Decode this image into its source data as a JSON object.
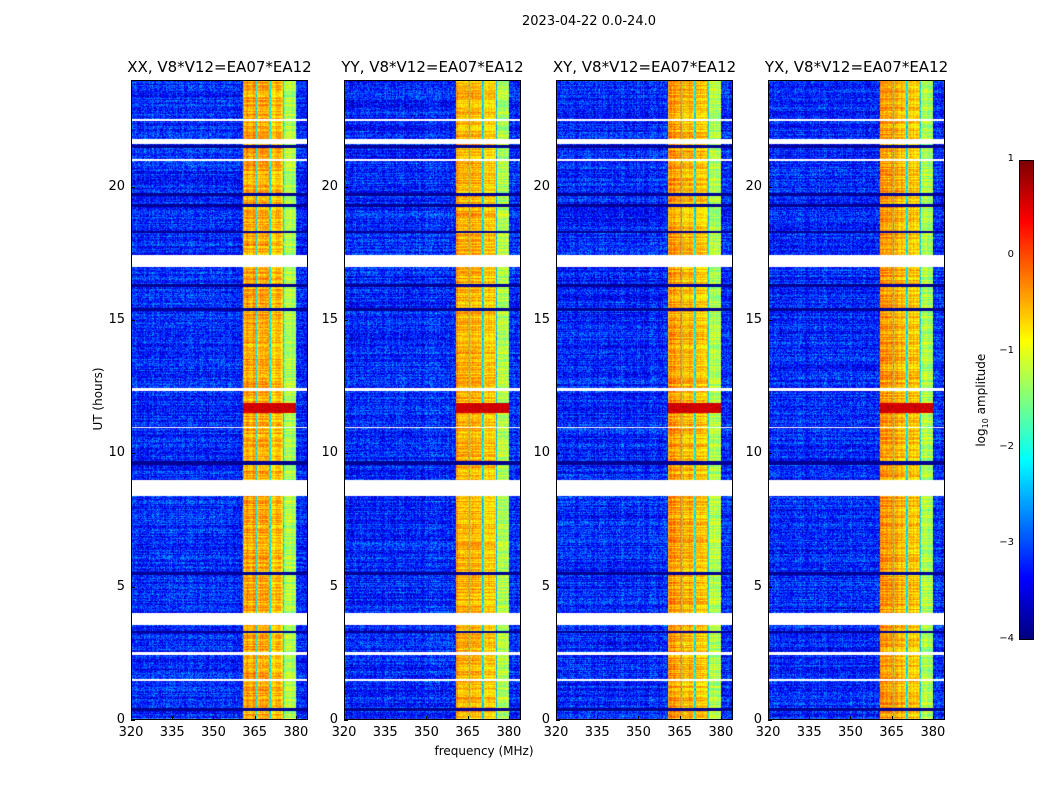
{
  "chart_data": {
    "type": "heatmap",
    "title": "2023-04-22 0.0-24.0",
    "xlabel": "frequency (MHz)",
    "ylabel": "UT (hours)",
    "xlim": [
      320,
      384.4
    ],
    "ylim": [
      0,
      24
    ],
    "xticks": [
      320,
      335,
      350,
      365,
      380
    ],
    "yticks": [
      0,
      5,
      10,
      15,
      20
    ],
    "colormap": "jet",
    "colorbar": {
      "label_prefix": "log",
      "label_sub": "10",
      "label_suffix": " amplitude",
      "range": [
        -4,
        1
      ],
      "ticks": [
        1,
        0,
        -1,
        -2,
        -3,
        -4
      ]
    },
    "background_level": -3.2,
    "band_columns": [
      {
        "from": 360.7,
        "to": 365.3,
        "level": -0.4
      },
      {
        "from": 365.3,
        "to": 365.8,
        "level": -2.3
      },
      {
        "from": 365.8,
        "to": 370.3,
        "level": -0.5
      },
      {
        "from": 370.3,
        "to": 370.8,
        "level": -2.3
      },
      {
        "from": 370.8,
        "to": 375.3,
        "level": -0.6
      },
      {
        "from": 375.3,
        "to": 375.8,
        "level": -2.4
      },
      {
        "from": 375.8,
        "to": 380.0,
        "level": -1.3
      }
    ],
    "flagged_times_white": [
      [
        22.45,
        22.55
      ],
      [
        21.6,
        21.8
      ],
      [
        20.95,
        21.05
      ],
      [
        17.0,
        17.45
      ],
      [
        12.35,
        12.45
      ],
      [
        10.95,
        11.0
      ],
      [
        8.4,
        9.0
      ],
      [
        3.55,
        4.0
      ],
      [
        2.45,
        2.55
      ],
      [
        1.45,
        1.55
      ],
      [
        0.0,
        0.05
      ]
    ],
    "dark_times": [
      [
        21.45,
        21.55
      ],
      [
        19.65,
        19.75
      ],
      [
        19.25,
        19.35
      ],
      [
        18.25,
        18.35
      ],
      [
        16.25,
        16.35
      ],
      [
        15.35,
        15.45
      ],
      [
        9.55,
        9.7
      ],
      [
        5.45,
        5.55
      ],
      [
        3.25,
        3.35
      ],
      [
        0.35,
        0.45
      ]
    ],
    "rfi_burst": {
      "from": 11.5,
      "to": 11.9,
      "level": 0.6
    },
    "panels": [
      {
        "title": "XX, V8*V12=EA07*EA12",
        "seed": 1
      },
      {
        "title": "YY, V8*V12=EA07*EA12",
        "seed": 2
      },
      {
        "title": "XY, V8*V12=EA07*EA12",
        "seed": 3
      },
      {
        "title": "YX, V8*V12=EA07*EA12",
        "seed": 4
      }
    ]
  }
}
